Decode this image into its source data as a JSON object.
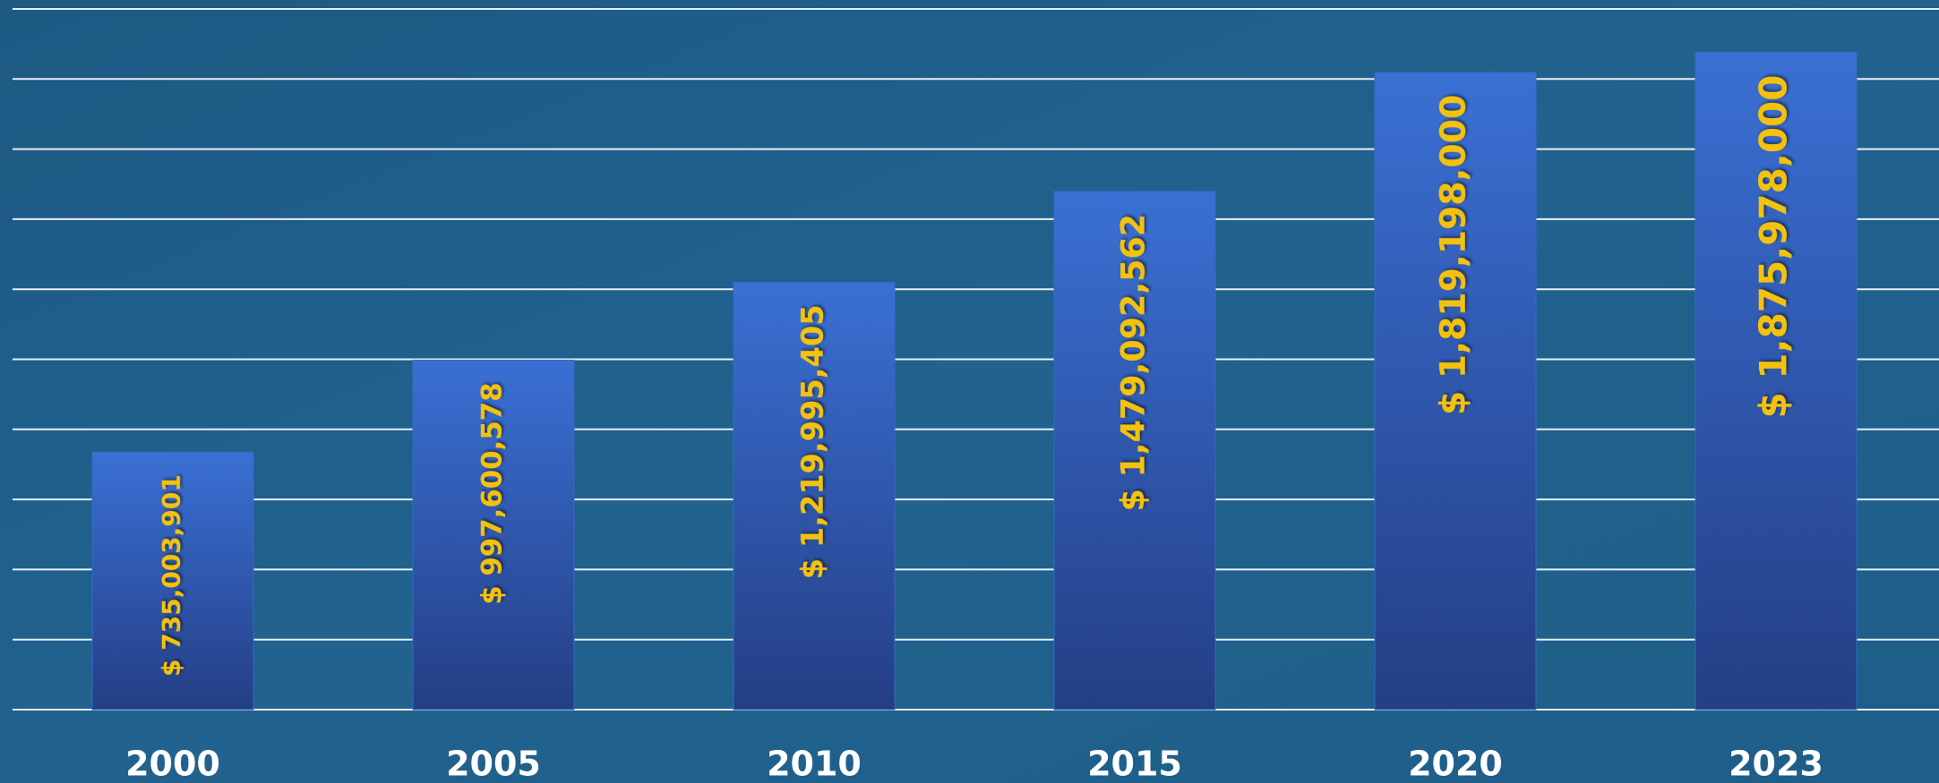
{
  "chart_data": {
    "type": "bar",
    "categories": [
      "2000",
      "2005",
      "2010",
      "2015",
      "2020",
      "2023"
    ],
    "values": [
      735003901,
      997600578,
      1219995405,
      1479092562,
      1819198000,
      1875978000
    ],
    "value_labels": [
      "$ 735,003,901",
      "$ 997,600,578",
      "$ 1,219,995,405",
      "$ 1,479,092,562",
      "$ 1,819,198,000",
      "$ 1,875,978,000"
    ],
    "color": "#3569c8",
    "ylim": [
      0,
      2000000000
    ],
    "yticks": [
      0,
      200000000,
      400000000,
      600000000,
      800000000,
      1000000000,
      1200000000,
      1400000000,
      1600000000,
      1800000000,
      2000000000
    ],
    "grid": true
  }
}
